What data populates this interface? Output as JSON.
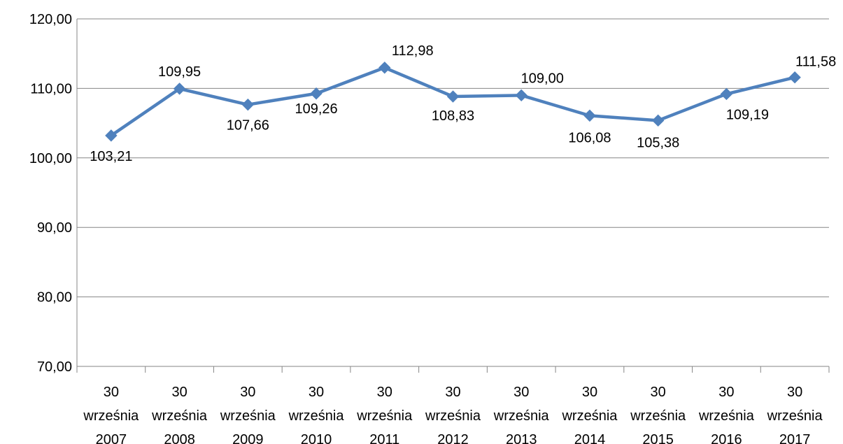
{
  "chart_data": {
    "type": "line",
    "categories": [
      [
        "30",
        "września",
        "2007"
      ],
      [
        "30",
        "września",
        "2008"
      ],
      [
        "30",
        "września",
        "2009"
      ],
      [
        "30",
        "września",
        "2010"
      ],
      [
        "30",
        "września",
        "2011"
      ],
      [
        "30",
        "września",
        "2012"
      ],
      [
        "30",
        "września",
        "2013"
      ],
      [
        "30",
        "września",
        "2014"
      ],
      [
        "30",
        "września",
        "2015"
      ],
      [
        "30",
        "września",
        "2016"
      ],
      [
        "30",
        "września",
        "2017"
      ]
    ],
    "series": [
      {
        "values": [
          103.21,
          109.95,
          107.66,
          109.26,
          112.98,
          108.83,
          109.0,
          106.08,
          105.38,
          109.19,
          111.58
        ],
        "data_labels": [
          "103,21",
          "109,95",
          "107,66",
          "109,26",
          "112,98",
          "108,83",
          "109,00",
          "106,08",
          "105,38",
          "109,19",
          "111,58"
        ],
        "color": "#4F81BD",
        "marker": "diamond"
      }
    ],
    "ylim": [
      70,
      120
    ],
    "yticks": [
      70,
      80,
      90,
      100,
      110,
      120
    ],
    "ytick_labels": [
      "70,00",
      "80,00",
      "90,00",
      "100,00",
      "110,00",
      "120,00"
    ],
    "title": "",
    "xlabel": "",
    "ylabel": "",
    "grid": true,
    "legend": "none"
  }
}
